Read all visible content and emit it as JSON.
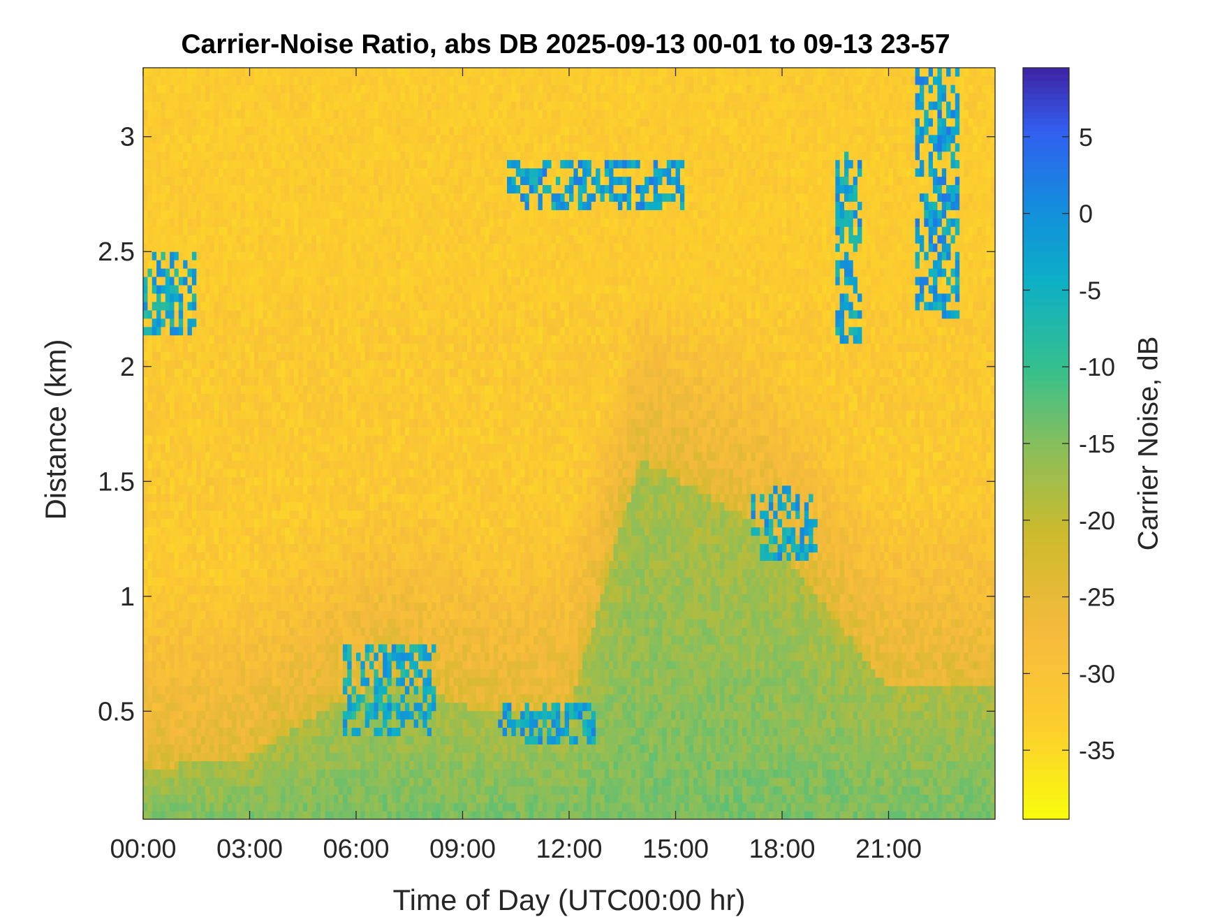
{
  "chart_data": {
    "type": "heatmap",
    "title": "Carrier-Noise Ratio, abs DB 2025-09-13 00-01 to 09-13 23-57",
    "xlabel": "Time of Day (UTC00:00 hr)",
    "ylabel": "Distance (km)",
    "xlim_hours": [
      0,
      24
    ],
    "ylim_km": [
      0.03,
      3.3
    ],
    "x_ticks": [
      "00:00",
      "03:00",
      "06:00",
      "09:00",
      "12:00",
      "15:00",
      "18:00",
      "21:00"
    ],
    "y_ticks": [
      "0.5",
      "1",
      "1.5",
      "2",
      "2.5",
      "3"
    ],
    "y_tick_values": [
      0.5,
      1,
      1.5,
      2,
      2.5,
      3
    ],
    "colorbar": {
      "label": "Carrier Noise, dB",
      "range": [
        -39.5,
        9.5
      ],
      "ticks": [
        "5",
        "0",
        "-5",
        "-10",
        "-15",
        "-20",
        "-25",
        "-30",
        "-35"
      ],
      "tick_values": [
        5,
        0,
        -5,
        -10,
        -15,
        -20,
        -25,
        -30,
        -35
      ],
      "colormap": "parula (reversed: yellow low, dark blue high)"
    },
    "background_level_db": -32,
    "boundary_layer_top_km": [
      {
        "hour": 0,
        "km": 0.25
      },
      {
        "hour": 3,
        "km": 0.3
      },
      {
        "hour": 5,
        "km": 0.5
      },
      {
        "hour": 7,
        "km": 0.65
      },
      {
        "hour": 9.5,
        "km": 0.5
      },
      {
        "hour": 12,
        "km": 0.5
      },
      {
        "hour": 14,
        "km": 1.6
      },
      {
        "hour": 17.5,
        "km": 1.3
      },
      {
        "hour": 19,
        "km": 1.0
      },
      {
        "hour": 21,
        "km": 0.6
      },
      {
        "hour": 24,
        "km": 0.6
      }
    ],
    "strong_echo_features": [
      {
        "name": "cloud layer",
        "hour_start": 10.3,
        "hour_end": 15.2,
        "km_low": 2.68,
        "km_high": 2.9,
        "db": 3
      },
      {
        "name": "cloud layer",
        "hour_start": 19.5,
        "hour_end": 20.2,
        "km_low": 2.1,
        "km_high": 2.95,
        "db": 2
      },
      {
        "name": "cloud layer",
        "hour_start": 21.7,
        "hour_end": 23.0,
        "km_low": 2.2,
        "km_high": 3.3,
        "db": 3
      },
      {
        "name": "cloud layer",
        "hour_start": 0,
        "hour_end": 1.5,
        "km_low": 2.15,
        "km_high": 2.5,
        "db": 1
      },
      {
        "name": "aerosol top",
        "hour_start": 5.6,
        "hour_end": 8.3,
        "km_low": 0.4,
        "km_high": 0.8,
        "db": 1
      },
      {
        "name": "aerosol top",
        "hour_start": 10.0,
        "hour_end": 12.8,
        "km_low": 0.35,
        "km_high": 0.55,
        "db": 2
      },
      {
        "name": "aerosol top",
        "hour_start": 17.1,
        "hour_end": 19.0,
        "km_low": 1.15,
        "km_high": 1.5,
        "db": 2
      }
    ]
  }
}
